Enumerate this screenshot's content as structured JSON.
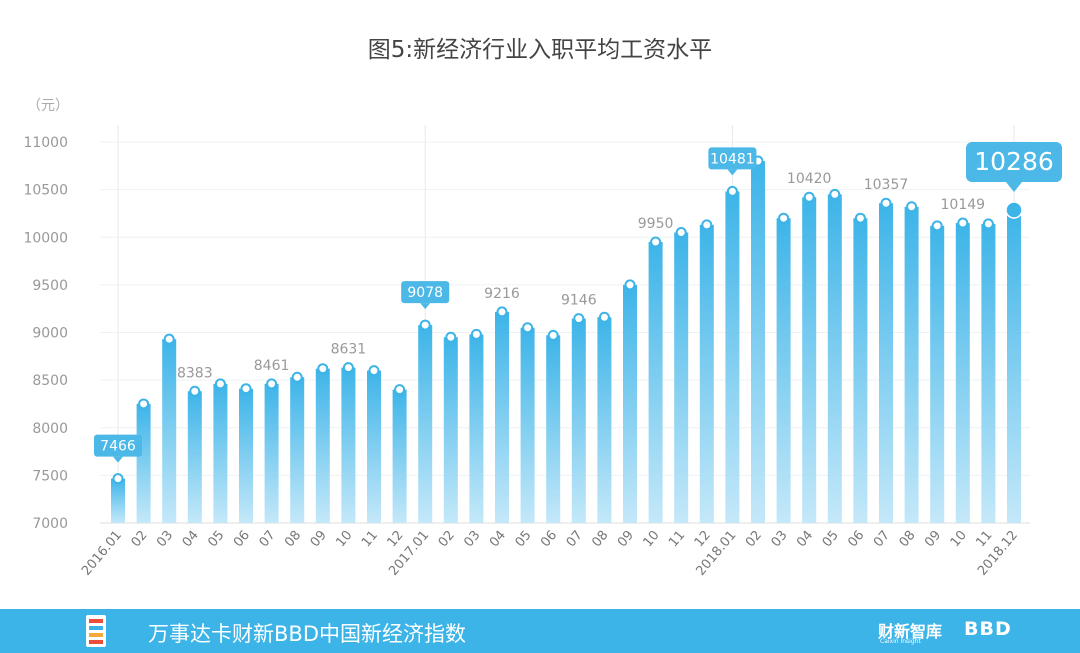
{
  "title": "图5:新经济行业入职平均工资水平",
  "chart_data": {
    "type": "bar",
    "unit": "（元）",
    "ylim": [
      7000,
      11000
    ],
    "yticks": [
      7000,
      7500,
      8000,
      8500,
      9000,
      9500,
      10000,
      10500,
      11000
    ],
    "categories": [
      "2016.01",
      "02",
      "03",
      "04",
      "05",
      "06",
      "07",
      "08",
      "09",
      "10",
      "11",
      "12",
      "2017.01",
      "02",
      "03",
      "04",
      "05",
      "06",
      "07",
      "08",
      "09",
      "10",
      "11",
      "12",
      "2018.01",
      "02",
      "03",
      "04",
      "05",
      "06",
      "07",
      "08",
      "09",
      "10",
      "11",
      "2018.12"
    ],
    "values": [
      7466,
      8250,
      8930,
      8383,
      8460,
      8410,
      8461,
      8530,
      8620,
      8631,
      8600,
      8400,
      9078,
      8950,
      8980,
      9216,
      9050,
      8970,
      9146,
      9160,
      9500,
      9950,
      10050,
      10130,
      10481,
      10800,
      10200,
      10420,
      10450,
      10200,
      10357,
      10320,
      10120,
      10149,
      10140,
      10286
    ],
    "labels": [
      {
        "index": 0,
        "text": "7466",
        "style": "callout"
      },
      {
        "index": 3,
        "text": "8383",
        "style": "plain"
      },
      {
        "index": 6,
        "text": "8461",
        "style": "plain"
      },
      {
        "index": 9,
        "text": "8631",
        "style": "plain"
      },
      {
        "index": 12,
        "text": "9078",
        "style": "callout"
      },
      {
        "index": 15,
        "text": "9216",
        "style": "plain"
      },
      {
        "index": 18,
        "text": "9146",
        "style": "plain"
      },
      {
        "index": 21,
        "text": "9950",
        "style": "plain"
      },
      {
        "index": 24,
        "text": "10481",
        "style": "callout"
      },
      {
        "index": 27,
        "text": "10420",
        "style": "plain"
      },
      {
        "index": 30,
        "text": "10357",
        "style": "plain"
      },
      {
        "index": 33,
        "text": "10149",
        "style": "plain"
      },
      {
        "index": 35,
        "text": "10286",
        "style": "callout-large"
      }
    ],
    "grid": true,
    "colors": {
      "bar_top": "#3db4e8",
      "bar_bottom": "#bfe6f8",
      "label": "#999999",
      "callout": "#4bb8e8"
    }
  },
  "footer": {
    "brand": "万事达卡财新BBD中国新经济指数",
    "logo_right": "财新智库",
    "logo_right_sub": "Caixin Insight",
    "logo_bbd": "BBD"
  }
}
